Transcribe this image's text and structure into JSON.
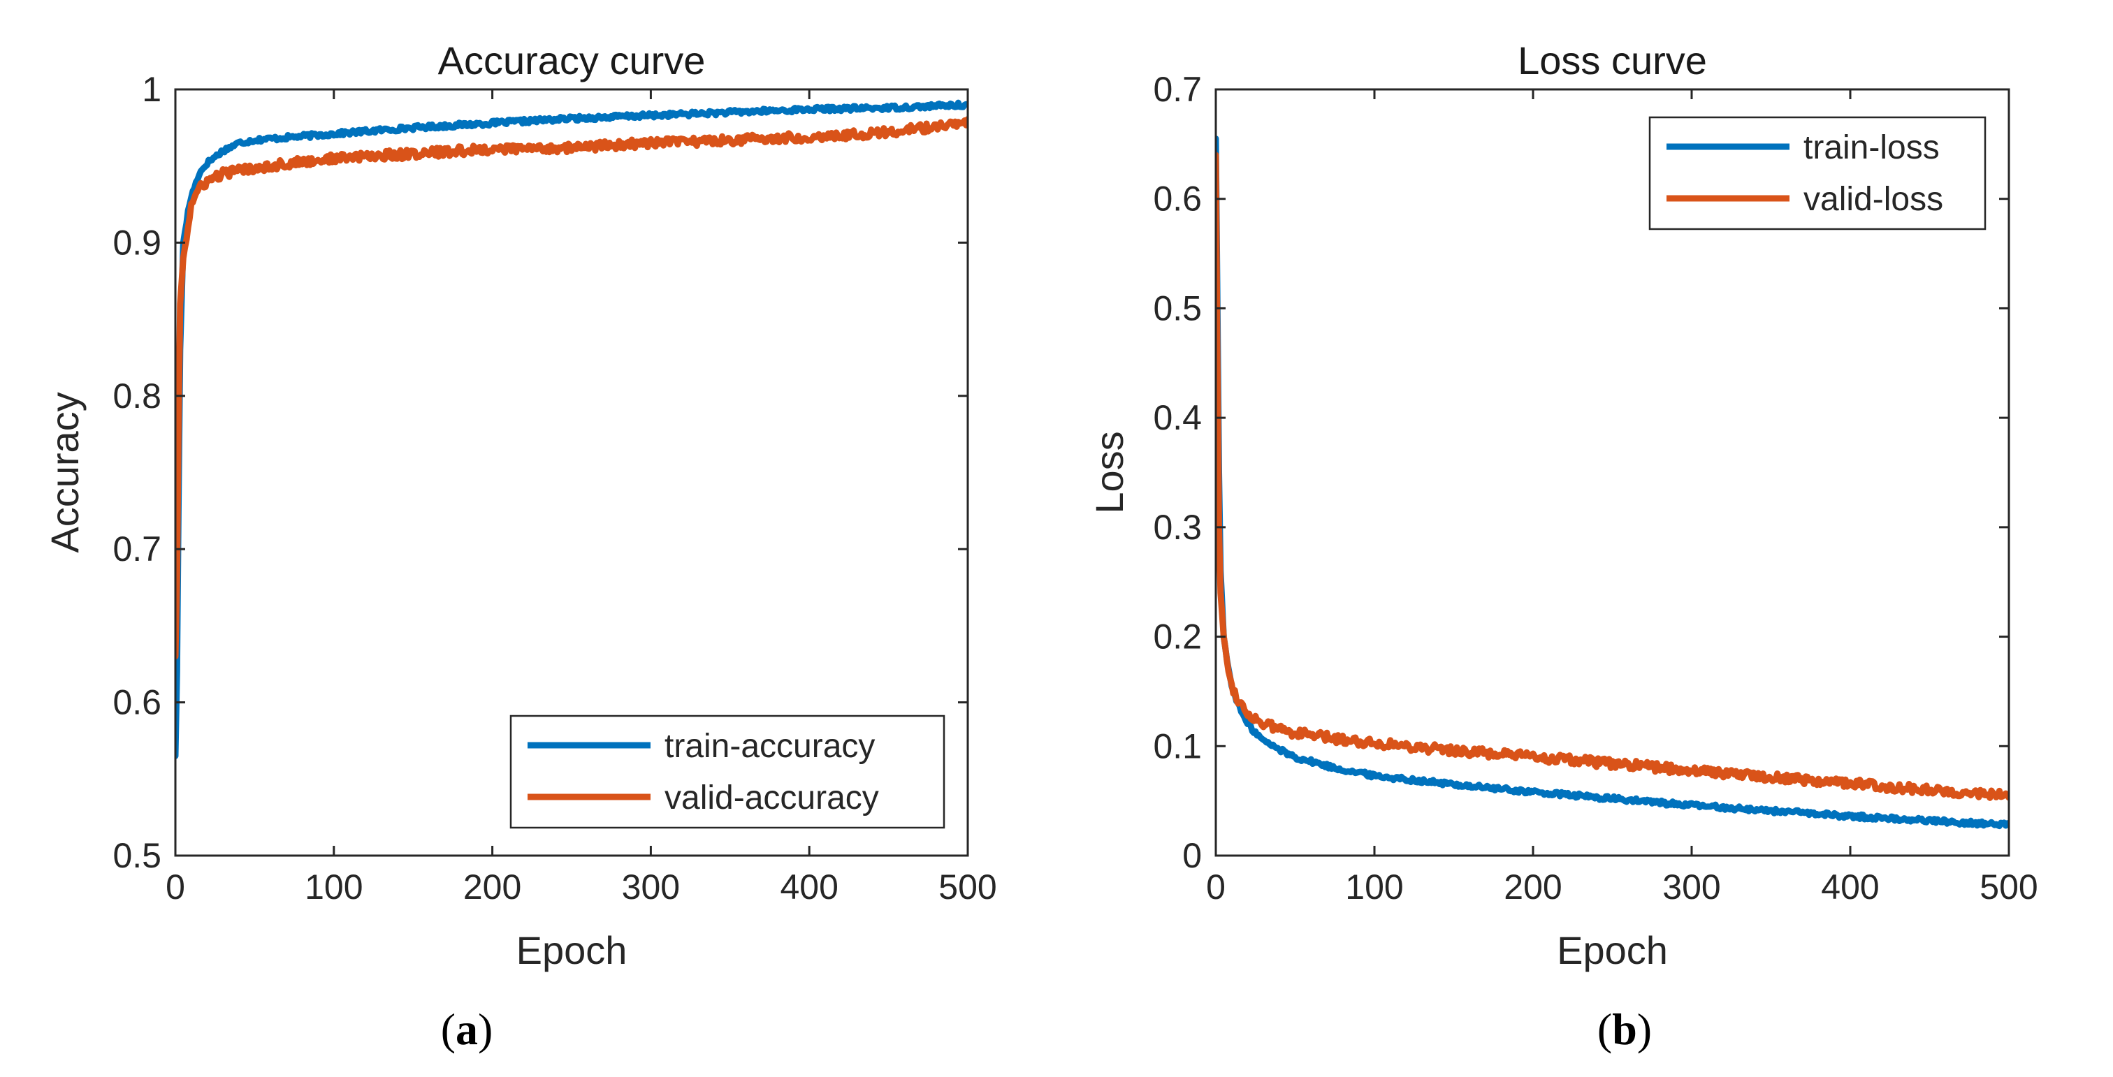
{
  "chart_data": [
    {
      "type": "line",
      "title": "Accuracy curve",
      "xlabel": "Epoch",
      "ylabel": "Accuracy",
      "xlim": [
        0,
        500
      ],
      "ylim": [
        0.5,
        1
      ],
      "xticks": [
        0,
        100,
        200,
        300,
        400,
        500
      ],
      "yticks": [
        0.5,
        0.6,
        0.7,
        0.8,
        0.9,
        1
      ],
      "ytick_labels": [
        "0.5",
        "0.6",
        "0.7",
        "0.8",
        "0.9",
        "1"
      ],
      "grid": false,
      "legend_position": "bottom-right",
      "panel_label": "a",
      "series": [
        {
          "name": "train-accuracy",
          "color": "#0072BD",
          "x": [
            0,
            1,
            2,
            3,
            5,
            8,
            10,
            15,
            20,
            30,
            40,
            50,
            75,
            100,
            150,
            200,
            250,
            300,
            350,
            400,
            450,
            500
          ],
          "y": [
            0.565,
            0.62,
            0.73,
            0.83,
            0.9,
            0.92,
            0.93,
            0.945,
            0.952,
            0.96,
            0.965,
            0.967,
            0.969,
            0.971,
            0.975,
            0.978,
            0.981,
            0.983,
            0.985,
            0.987,
            0.988,
            0.99
          ]
        },
        {
          "name": "valid-accuracy",
          "color": "#D95319",
          "x": [
            0,
            1,
            2,
            3,
            5,
            8,
            10,
            15,
            20,
            30,
            40,
            50,
            75,
            100,
            150,
            200,
            250,
            300,
            350,
            400,
            450,
            500
          ],
          "y": [
            0.63,
            0.68,
            0.78,
            0.86,
            0.89,
            0.91,
            0.925,
            0.935,
            0.94,
            0.945,
            0.947,
            0.949,
            0.952,
            0.955,
            0.958,
            0.961,
            0.962,
            0.965,
            0.967,
            0.969,
            0.972,
            0.978
          ]
        }
      ]
    },
    {
      "type": "line",
      "title": "Loss curve",
      "xlabel": "Epoch",
      "ylabel": "Loss",
      "xlim": [
        0,
        500
      ],
      "ylim": [
        0,
        0.7
      ],
      "xticks": [
        0,
        100,
        200,
        300,
        400,
        500
      ],
      "yticks": [
        0,
        0.1,
        0.2,
        0.3,
        0.4,
        0.5,
        0.6,
        0.7
      ],
      "ytick_labels": [
        "0",
        "0.1",
        "0.2",
        "0.3",
        "0.4",
        "0.5",
        "0.6",
        "0.7"
      ],
      "grid": false,
      "legend_position": "top-right",
      "panel_label": "b",
      "series": [
        {
          "name": "train-loss",
          "color": "#0072BD",
          "x": [
            0,
            1,
            2,
            3,
            5,
            8,
            10,
            15,
            20,
            30,
            40,
            50,
            75,
            100,
            150,
            200,
            250,
            300,
            350,
            400,
            450,
            500
          ],
          "y": [
            0.655,
            0.5,
            0.35,
            0.26,
            0.2,
            0.17,
            0.155,
            0.135,
            0.12,
            0.105,
            0.097,
            0.09,
            0.08,
            0.073,
            0.065,
            0.058,
            0.052,
            0.046,
            0.041,
            0.036,
            0.032,
            0.028
          ]
        },
        {
          "name": "valid-loss",
          "color": "#D95319",
          "x": [
            0,
            1,
            2,
            3,
            5,
            8,
            10,
            15,
            20,
            30,
            40,
            50,
            75,
            100,
            150,
            200,
            250,
            300,
            350,
            400,
            450,
            500
          ],
          "y": [
            0.64,
            0.45,
            0.3,
            0.24,
            0.2,
            0.17,
            0.155,
            0.14,
            0.13,
            0.12,
            0.116,
            0.112,
            0.107,
            0.103,
            0.096,
            0.09,
            0.084,
            0.078,
            0.072,
            0.066,
            0.06,
            0.055
          ]
        }
      ]
    }
  ]
}
